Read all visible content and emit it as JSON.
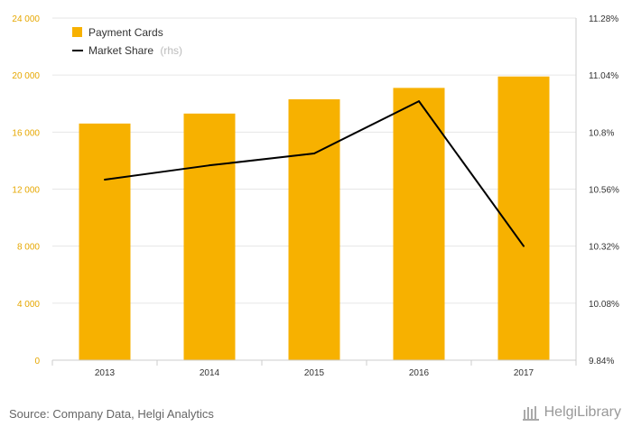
{
  "chart_data": {
    "type": "bar",
    "categories": [
      "2013",
      "2014",
      "2015",
      "2016",
      "2017"
    ],
    "series": [
      {
        "name": "Payment Cards",
        "axis": "left",
        "type": "bar",
        "color": "#f7b100",
        "values": [
          16600,
          17300,
          18300,
          19100,
          19900
        ]
      },
      {
        "name": "Market Share",
        "axis": "right",
        "type": "line",
        "color": "#000000",
        "unit": "%",
        "values": [
          10.6,
          10.66,
          10.71,
          10.93,
          10.32
        ]
      }
    ],
    "left_axis": {
      "min": 0,
      "max": 24000,
      "ticks": [
        "0",
        "4 000",
        "8 000",
        "12 000",
        "16 000",
        "20 000",
        "24 000"
      ]
    },
    "right_axis": {
      "min": 9.84,
      "max": 11.28,
      "ticks": [
        "9.84%",
        "10.08%",
        "10.32%",
        "10.56%",
        "10.8%",
        "11.04%",
        "11.28%"
      ]
    },
    "legend": [
      {
        "label": "Payment Cards",
        "suffix": ""
      },
      {
        "label": "Market Share",
        "suffix": "(rhs)"
      }
    ],
    "grid": true
  },
  "footer": {
    "source": "Source: Company Data, Helgi Analytics",
    "brand": "HelgiLibrary"
  }
}
